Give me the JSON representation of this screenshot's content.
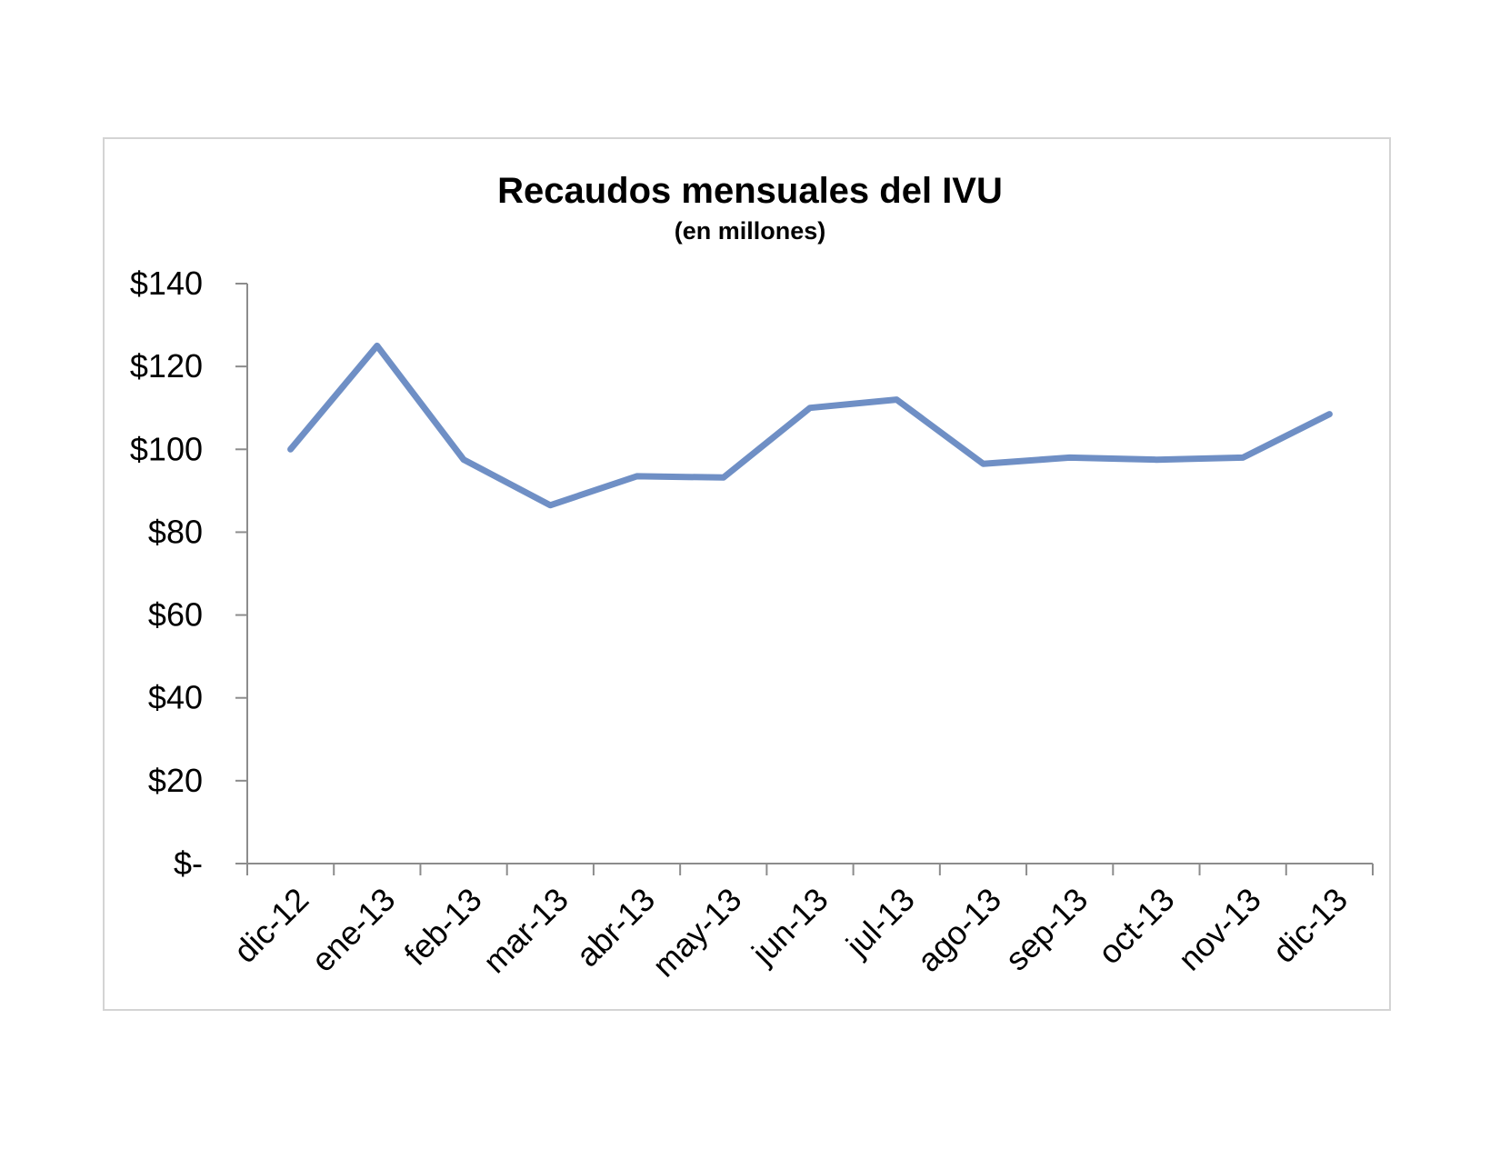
{
  "chart_data": {
    "type": "line",
    "title": "Recaudos mensuales del IVU",
    "subtitle": "(en millones)",
    "xlabel": "",
    "ylabel": "",
    "categories": [
      "dic-12",
      "ene-13",
      "feb-13",
      "mar-13",
      "abr-13",
      "may-13",
      "jun-13",
      "jul-13",
      "ago-13",
      "sep-13",
      "oct-13",
      "nov-13",
      "dic-13"
    ],
    "series": [
      {
        "values": [
          100,
          125,
          97.5,
          86.5,
          93.5,
          93.2,
          110,
          112,
          96.5,
          98,
          97.5,
          98,
          108.5
        ],
        "color": "#6f8fc5"
      }
    ],
    "ylim": [
      0,
      140
    ],
    "yticks": [
      0,
      20,
      40,
      60,
      80,
      100,
      120,
      140
    ],
    "ytick_labels": [
      "$-",
      "$20",
      "$40",
      "$60",
      "$80",
      "$100",
      "$120",
      "$140"
    ],
    "grid": false,
    "legend": "none"
  }
}
